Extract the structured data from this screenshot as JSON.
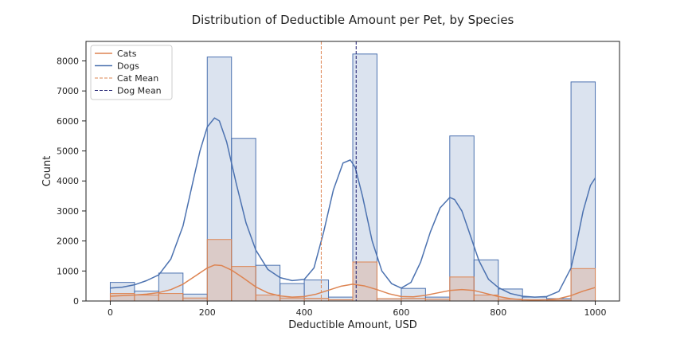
{
  "chart_data": {
    "type": "histogram",
    "title": "Distribution of Deductible Amount per Pet, by Species",
    "xlabel": "Deductible Amount, USD",
    "ylabel": "Count",
    "xlim": [
      -50,
      1050
    ],
    "ylim": [
      0,
      8650
    ],
    "xticks": [
      0,
      200,
      400,
      600,
      800,
      1000
    ],
    "yticks": [
      0,
      1000,
      2000,
      3000,
      4000,
      5000,
      6000,
      7000,
      8000
    ],
    "bin_edges": [
      0,
      50,
      100,
      150,
      200,
      250,
      300,
      350,
      400,
      450,
      500,
      550,
      600,
      650,
      700,
      750,
      800,
      850,
      900,
      950,
      1000
    ],
    "legend_location": "upper-left",
    "series": [
      {
        "name": "Cats",
        "color": "#dd8452",
        "counts": [
          250,
          200,
          250,
          100,
          2050,
          1150,
          200,
          100,
          90,
          40,
          1300,
          80,
          90,
          60,
          800,
          200,
          60,
          40,
          30,
          1080
        ],
        "kde_x": [
          0,
          25,
          50,
          75,
          100,
          125,
          150,
          175,
          200,
          215,
          230,
          250,
          275,
          300,
          325,
          350,
          375,
          400,
          425,
          450,
          475,
          500,
          525,
          550,
          575,
          600,
          625,
          650,
          675,
          700,
          725,
          750,
          775,
          800,
          825,
          850,
          875,
          900,
          925,
          950,
          975,
          1000
        ],
        "kde_y": [
          160,
          180,
          200,
          230,
          280,
          380,
          560,
          830,
          1100,
          1200,
          1180,
          1030,
          760,
          470,
          270,
          170,
          130,
          150,
          230,
          360,
          490,
          560,
          500,
          380,
          240,
          150,
          140,
          190,
          270,
          350,
          380,
          350,
          250,
          150,
          80,
          40,
          30,
          40,
          80,
          180,
          330,
          450
        ]
      },
      {
        "name": "Dogs",
        "color": "#4c72b0",
        "counts": [
          620,
          330,
          930,
          230,
          8130,
          5420,
          1190,
          580,
          700,
          130,
          8230,
          80,
          420,
          130,
          5500,
          1370,
          400,
          130,
          80,
          7300
        ],
        "kde_x": [
          0,
          25,
          50,
          75,
          100,
          125,
          150,
          175,
          185,
          200,
          215,
          225,
          240,
          260,
          280,
          300,
          325,
          350,
          375,
          400,
          420,
          440,
          460,
          480,
          495,
          505,
          520,
          540,
          560,
          580,
          600,
          620,
          640,
          660,
          680,
          700,
          710,
          725,
          740,
          760,
          780,
          800,
          825,
          850,
          875,
          900,
          925,
          950,
          960,
          975,
          990,
          1000
        ],
        "kde_y": [
          430,
          460,
          540,
          680,
          870,
          1400,
          2500,
          4300,
          5000,
          5800,
          6100,
          6000,
          5300,
          3900,
          2600,
          1700,
          1050,
          780,
          680,
          720,
          1100,
          2300,
          3700,
          4600,
          4700,
          4450,
          3500,
          2000,
          1000,
          580,
          430,
          620,
          1300,
          2300,
          3100,
          3450,
          3380,
          3000,
          2300,
          1350,
          720,
          450,
          250,
          160,
          130,
          150,
          320,
          1100,
          1800,
          3000,
          3850,
          4100
        ]
      }
    ],
    "reference_lines": [
      {
        "name": "Cat Mean",
        "x": 435,
        "color": "#dd8452",
        "style": "dashed"
      },
      {
        "name": "Dog Mean",
        "x": 507,
        "color": "#1a1a6e",
        "style": "dashed"
      }
    ]
  }
}
